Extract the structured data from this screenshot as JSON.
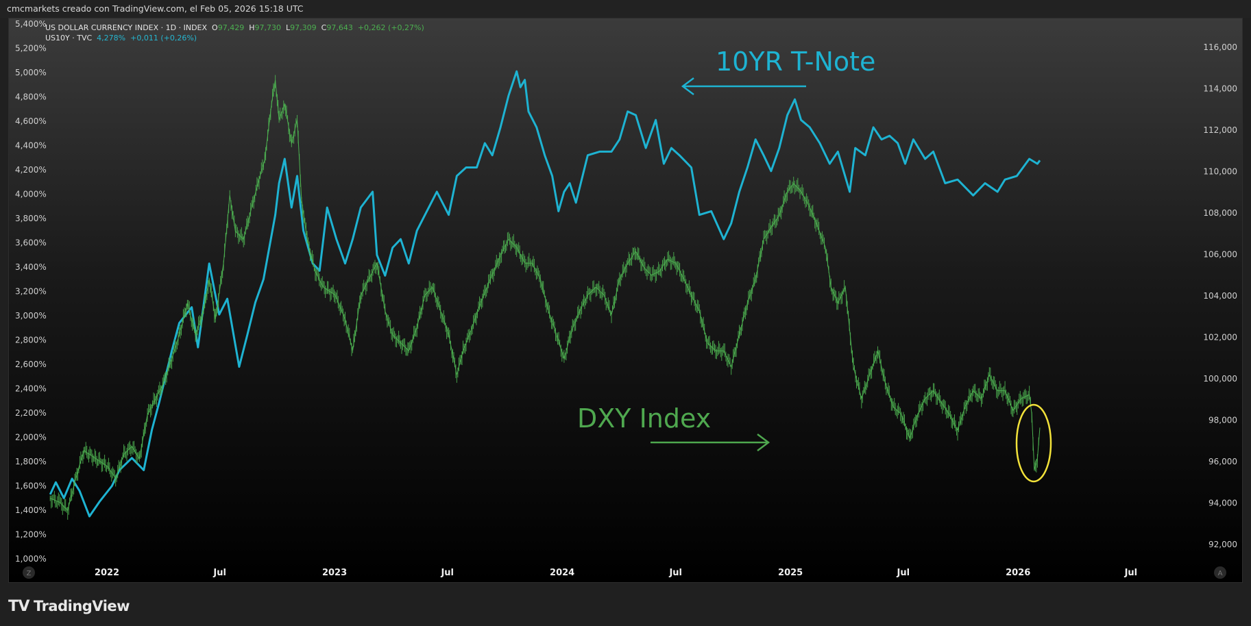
{
  "header": {
    "attribution": "cmcmarkets creado con TradingView.com, el Feb 05, 2026 15:18 UTC"
  },
  "legend": {
    "dxy_title": "US DOLLAR CURRENCY INDEX · 1D · INDEX",
    "dxy_o_label": "O",
    "dxy_o": "97,429",
    "dxy_h_label": "H",
    "dxy_h": "97,730",
    "dxy_l_label": "L",
    "dxy_l": "97,309",
    "dxy_c_label": "C",
    "dxy_c": "97,643",
    "dxy_change": "+0,262 (+0,27%)",
    "us10y_title": "US10Y · TVC",
    "us10y_value": "4,278%",
    "us10y_change": "+0,011 (+0,26%)"
  },
  "footer": {
    "brand": "TradingView",
    "logo_glyph": "17"
  },
  "axis_buttons": {
    "left": "Z",
    "right": "A"
  },
  "colors": {
    "us10y": "#1eb3d2",
    "dxy": "#4caf50",
    "annotation_green": "#4fa84f",
    "highlight": "#f2e23a"
  },
  "chart_data": {
    "type": "line",
    "grid": false,
    "legend": "top-left",
    "x_ticks": [
      {
        "date": "2022-01-01",
        "label": "2022"
      },
      {
        "date": "2022-07-01",
        "label": "Jul"
      },
      {
        "date": "2023-01-01",
        "label": "2023"
      },
      {
        "date": "2023-07-01",
        "label": "Jul"
      },
      {
        "date": "2024-01-01",
        "label": "2024"
      },
      {
        "date": "2024-07-01",
        "label": "Jul"
      },
      {
        "date": "2025-01-01",
        "label": "2025"
      },
      {
        "date": "2025-07-01",
        "label": "Jul"
      },
      {
        "date": "2026-01-01",
        "label": "2026"
      },
      {
        "date": "2026-07-01",
        "label": "Jul"
      }
    ],
    "left_axis": {
      "range": [
        1.0,
        5.4
      ],
      "ticks": [
        "5,400%",
        "5,200%",
        "5,000%",
        "4,800%",
        "4,600%",
        "4,400%",
        "4,200%",
        "4,000%",
        "3,800%",
        "3,600%",
        "3,400%",
        "3,200%",
        "3,000%",
        "2,800%",
        "2,600%",
        "2,400%",
        "2,200%",
        "2,000%",
        "1,800%",
        "1,600%",
        "1,400%",
        "1,200%",
        "1,000%"
      ]
    },
    "right_axis": {
      "range": [
        92,
        116
      ],
      "ticks": [
        "116,000",
        "114,000",
        "112,000",
        "110,000",
        "108,000",
        "106,000",
        "104,000",
        "102,000",
        "100,000",
        "98,000",
        "96,000",
        "94,000",
        "92,000"
      ]
    },
    "annotations": [
      {
        "text": "10YR T-Note",
        "arrow": "left"
      },
      {
        "text": "DXY Index",
        "arrow": "right"
      }
    ],
    "series": [
      {
        "name": "US10Y",
        "axis": "left",
        "points": [
          [
            "2021-10-02",
            1.53
          ],
          [
            "2021-10-11",
            1.63
          ],
          [
            "2021-10-24",
            1.5
          ],
          [
            "2021-11-06",
            1.66
          ],
          [
            "2021-11-18",
            1.56
          ],
          [
            "2021-12-04",
            1.35
          ],
          [
            "2021-12-20",
            1.47
          ],
          [
            "2022-01-09",
            1.6
          ],
          [
            "2022-01-21",
            1.73
          ],
          [
            "2022-02-10",
            1.83
          ],
          [
            "2022-03-01",
            1.73
          ],
          [
            "2022-03-14",
            2.06
          ],
          [
            "2022-03-26",
            2.29
          ],
          [
            "2022-04-15",
            2.71
          ],
          [
            "2022-04-27",
            2.94
          ],
          [
            "2022-05-17",
            3.07
          ],
          [
            "2022-05-27",
            2.74
          ],
          [
            "2022-06-14",
            3.43
          ],
          [
            "2022-06-30",
            3.01
          ],
          [
            "2022-07-13",
            3.14
          ],
          [
            "2022-08-01",
            2.58
          ],
          [
            "2022-08-14",
            2.84
          ],
          [
            "2022-08-27",
            3.11
          ],
          [
            "2022-09-09",
            3.3
          ],
          [
            "2022-09-28",
            3.83
          ],
          [
            "2022-10-04",
            4.09
          ],
          [
            "2022-10-13",
            4.29
          ],
          [
            "2022-10-24",
            3.89
          ],
          [
            "2022-11-02",
            4.15
          ],
          [
            "2022-11-12",
            3.7
          ],
          [
            "2022-11-27",
            3.43
          ],
          [
            "2022-12-08",
            3.37
          ],
          [
            "2022-12-20",
            3.89
          ],
          [
            "2023-01-04",
            3.63
          ],
          [
            "2023-01-18",
            3.43
          ],
          [
            "2023-01-30",
            3.63
          ],
          [
            "2023-02-12",
            3.89
          ],
          [
            "2023-03-03",
            4.02
          ],
          [
            "2023-03-10",
            3.5
          ],
          [
            "2023-03-23",
            3.33
          ],
          [
            "2023-04-04",
            3.56
          ],
          [
            "2023-04-17",
            3.63
          ],
          [
            "2023-04-30",
            3.43
          ],
          [
            "2023-05-13",
            3.7
          ],
          [
            "2023-05-26",
            3.83
          ],
          [
            "2023-06-14",
            4.02
          ],
          [
            "2023-07-03",
            3.83
          ],
          [
            "2023-07-16",
            4.15
          ],
          [
            "2023-07-31",
            4.22
          ],
          [
            "2023-08-17",
            4.22
          ],
          [
            "2023-08-30",
            4.42
          ],
          [
            "2023-09-11",
            4.32
          ],
          [
            "2023-09-24",
            4.55
          ],
          [
            "2023-10-07",
            4.81
          ],
          [
            "2023-10-20",
            5.01
          ],
          [
            "2023-10-26",
            4.88
          ],
          [
            "2023-11-02",
            4.94
          ],
          [
            "2023-11-08",
            4.68
          ],
          [
            "2023-11-21",
            4.55
          ],
          [
            "2023-12-04",
            4.32
          ],
          [
            "2023-12-16",
            4.15
          ],
          [
            "2023-12-26",
            3.86
          ],
          [
            "2024-01-04",
            4.02
          ],
          [
            "2024-01-13",
            4.09
          ],
          [
            "2024-01-23",
            3.93
          ],
          [
            "2024-02-11",
            4.32
          ],
          [
            "2024-03-01",
            4.35
          ],
          [
            "2024-03-20",
            4.35
          ],
          [
            "2024-04-02",
            4.45
          ],
          [
            "2024-04-15",
            4.68
          ],
          [
            "2024-04-28",
            4.65
          ],
          [
            "2024-05-14",
            4.38
          ],
          [
            "2024-05-30",
            4.61
          ],
          [
            "2024-06-12",
            4.25
          ],
          [
            "2024-06-24",
            4.38
          ],
          [
            "2024-07-07",
            4.32
          ],
          [
            "2024-07-26",
            4.22
          ],
          [
            "2024-08-08",
            3.83
          ],
          [
            "2024-08-27",
            3.86
          ],
          [
            "2024-09-16",
            3.63
          ],
          [
            "2024-09-28",
            3.76
          ],
          [
            "2024-10-11",
            4.02
          ],
          [
            "2024-10-24",
            4.22
          ],
          [
            "2024-11-06",
            4.45
          ],
          [
            "2024-11-19",
            4.32
          ],
          [
            "2024-12-01",
            4.19
          ],
          [
            "2024-12-14",
            4.38
          ],
          [
            "2024-12-27",
            4.65
          ],
          [
            "2025-01-08",
            4.78
          ],
          [
            "2025-01-18",
            4.61
          ],
          [
            "2025-02-01",
            4.55
          ],
          [
            "2025-02-17",
            4.42
          ],
          [
            "2025-03-05",
            4.25
          ],
          [
            "2025-03-18",
            4.35
          ],
          [
            "2025-04-06",
            4.02
          ],
          [
            "2025-04-15",
            4.38
          ],
          [
            "2025-05-01",
            4.32
          ],
          [
            "2025-05-14",
            4.55
          ],
          [
            "2025-05-27",
            4.45
          ],
          [
            "2025-06-09",
            4.48
          ],
          [
            "2025-06-22",
            4.42
          ],
          [
            "2025-07-04",
            4.25
          ],
          [
            "2025-07-17",
            4.45
          ],
          [
            "2025-08-05",
            4.29
          ],
          [
            "2025-08-18",
            4.35
          ],
          [
            "2025-09-06",
            4.09
          ],
          [
            "2025-09-26",
            4.12
          ],
          [
            "2025-10-21",
            3.99
          ],
          [
            "2025-11-09",
            4.09
          ],
          [
            "2025-11-29",
            4.02
          ],
          [
            "2025-12-11",
            4.12
          ],
          [
            "2025-12-30",
            4.15
          ],
          [
            "2026-01-19",
            4.29
          ],
          [
            "2026-02-01",
            4.25
          ],
          [
            "2026-02-05",
            4.278
          ]
        ]
      },
      {
        "name": "US DOLLAR CURRENCY INDEX",
        "axis": "right",
        "points": [
          [
            "2021-10-02",
            94.23
          ],
          [
            "2021-10-17",
            94.04
          ],
          [
            "2021-10-30",
            93.65
          ],
          [
            "2021-11-12",
            95.19
          ],
          [
            "2021-11-25",
            96.54
          ],
          [
            "2021-12-14",
            96.15
          ],
          [
            "2022-01-02",
            95.77
          ],
          [
            "2022-01-15",
            95.19
          ],
          [
            "2022-01-28",
            96.35
          ],
          [
            "2022-02-10",
            96.73
          ],
          [
            "2022-02-22",
            96.15
          ],
          [
            "2022-03-07",
            98.27
          ],
          [
            "2022-03-20",
            99.04
          ],
          [
            "2022-04-02",
            99.81
          ],
          [
            "2022-04-15",
            100.96
          ],
          [
            "2022-04-27",
            102.12
          ],
          [
            "2022-05-10",
            103.65
          ],
          [
            "2022-05-23",
            102.12
          ],
          [
            "2022-06-05",
            103.27
          ],
          [
            "2022-06-14",
            104.81
          ],
          [
            "2022-06-24",
            102.88
          ],
          [
            "2022-07-07",
            105.58
          ],
          [
            "2022-07-17",
            108.85
          ],
          [
            "2022-07-26",
            107.12
          ],
          [
            "2022-08-08",
            106.73
          ],
          [
            "2022-08-21",
            108.27
          ],
          [
            "2022-09-02",
            109.62
          ],
          [
            "2022-09-11",
            110.58
          ],
          [
            "2022-09-22",
            113.27
          ],
          [
            "2022-09-28",
            114.42
          ],
          [
            "2022-10-04",
            112.5
          ],
          [
            "2022-10-13",
            113.27
          ],
          [
            "2022-10-24",
            111.35
          ],
          [
            "2022-11-02",
            112.5
          ],
          [
            "2022-11-09",
            108.65
          ],
          [
            "2022-11-18",
            106.73
          ],
          [
            "2022-12-01",
            105.19
          ],
          [
            "2022-12-14",
            104.42
          ],
          [
            "2023-01-02",
            104.04
          ],
          [
            "2023-01-18",
            102.88
          ],
          [
            "2023-01-30",
            101.35
          ],
          [
            "2023-02-12",
            104.04
          ],
          [
            "2023-02-25",
            104.81
          ],
          [
            "2023-03-10",
            105.58
          ],
          [
            "2023-03-23",
            103.27
          ],
          [
            "2023-04-04",
            102.12
          ],
          [
            "2023-04-17",
            101.73
          ],
          [
            "2023-04-30",
            101.35
          ],
          [
            "2023-05-13",
            102.5
          ],
          [
            "2023-05-26",
            104.04
          ],
          [
            "2023-06-07",
            104.42
          ],
          [
            "2023-06-20",
            103.27
          ],
          [
            "2023-07-03",
            102.12
          ],
          [
            "2023-07-16",
            100.19
          ],
          [
            "2023-07-26",
            101.35
          ],
          [
            "2023-08-10",
            102.5
          ],
          [
            "2023-08-23",
            103.65
          ],
          [
            "2023-09-08",
            104.81
          ],
          [
            "2023-09-24",
            105.96
          ],
          [
            "2023-10-07",
            106.73
          ],
          [
            "2023-10-20",
            106.35
          ],
          [
            "2023-11-02",
            105.58
          ],
          [
            "2023-11-14",
            105.58
          ],
          [
            "2023-11-27",
            104.81
          ],
          [
            "2023-12-10",
            103.27
          ],
          [
            "2023-12-23",
            102.12
          ],
          [
            "2024-01-04",
            100.96
          ],
          [
            "2024-01-16",
            102.31
          ],
          [
            "2024-01-29",
            103.27
          ],
          [
            "2024-02-11",
            104.04
          ],
          [
            "2024-02-24",
            104.42
          ],
          [
            "2024-03-08",
            104.04
          ],
          [
            "2024-03-20",
            103.08
          ],
          [
            "2024-04-02",
            104.81
          ],
          [
            "2024-04-15",
            105.58
          ],
          [
            "2024-04-28",
            106.15
          ],
          [
            "2024-05-11",
            105.38
          ],
          [
            "2024-05-23",
            105.0
          ],
          [
            "2024-06-05",
            105.19
          ],
          [
            "2024-06-18",
            105.77
          ],
          [
            "2024-07-01",
            105.58
          ],
          [
            "2024-07-14",
            104.81
          ],
          [
            "2024-07-26",
            104.04
          ],
          [
            "2024-08-08",
            103.27
          ],
          [
            "2024-08-21",
            101.73
          ],
          [
            "2024-09-03",
            101.35
          ],
          [
            "2024-09-16",
            101.35
          ],
          [
            "2024-09-28",
            100.58
          ],
          [
            "2024-10-11",
            102.12
          ],
          [
            "2024-10-24",
            103.65
          ],
          [
            "2024-11-06",
            104.81
          ],
          [
            "2024-11-19",
            106.73
          ],
          [
            "2024-12-01",
            107.31
          ],
          [
            "2024-12-14",
            107.88
          ],
          [
            "2024-12-27",
            109.04
          ],
          [
            "2025-01-06",
            109.42
          ],
          [
            "2025-01-18",
            109.04
          ],
          [
            "2025-02-01",
            108.27
          ],
          [
            "2025-02-14",
            107.31
          ],
          [
            "2025-02-26",
            106.35
          ],
          [
            "2025-03-07",
            104.42
          ],
          [
            "2025-03-18",
            103.65
          ],
          [
            "2025-03-30",
            104.42
          ],
          [
            "2025-04-12",
            100.58
          ],
          [
            "2025-04-25",
            99.04
          ],
          [
            "2025-05-08",
            100.19
          ],
          [
            "2025-05-21",
            101.35
          ],
          [
            "2025-06-02",
            99.81
          ],
          [
            "2025-06-15",
            98.65
          ],
          [
            "2025-06-28",
            98.27
          ],
          [
            "2025-07-11",
            97.12
          ],
          [
            "2025-07-24",
            98.27
          ],
          [
            "2025-08-05",
            99.04
          ],
          [
            "2025-08-18",
            99.42
          ],
          [
            "2025-08-31",
            98.85
          ],
          [
            "2025-09-13",
            98.27
          ],
          [
            "2025-09-26",
            97.5
          ],
          [
            "2025-10-08",
            98.65
          ],
          [
            "2025-10-21",
            99.42
          ],
          [
            "2025-11-03",
            99.04
          ],
          [
            "2025-11-16",
            100.19
          ],
          [
            "2025-11-29",
            99.42
          ],
          [
            "2025-12-11",
            99.42
          ],
          [
            "2025-12-24",
            98.46
          ],
          [
            "2026-01-06",
            99.04
          ],
          [
            "2026-01-19",
            99.23
          ],
          [
            "2026-01-23",
            98.3
          ],
          [
            "2026-01-27",
            95.6
          ],
          [
            "2026-02-01",
            96.15
          ],
          [
            "2026-02-05",
            97.643
          ]
        ]
      }
    ]
  }
}
